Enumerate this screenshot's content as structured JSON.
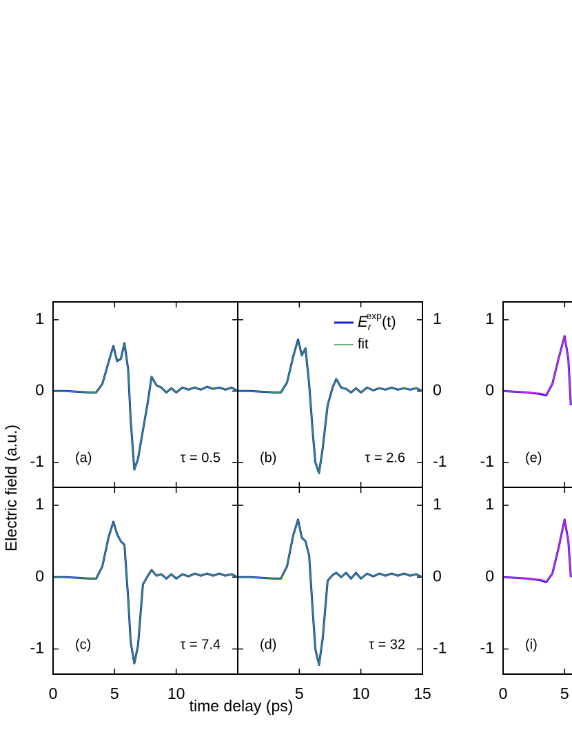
{
  "chart_data": [
    {
      "type": "line",
      "label": "(a)",
      "note": "τ = 0.5",
      "ylabel": "Electric field (a.u.)",
      "x": [
        0,
        1,
        2,
        3,
        3.5,
        4,
        4.5,
        4.9,
        5.2,
        5.5,
        5.8,
        6.1,
        6.3,
        6.6,
        6.9,
        7.3,
        7.7,
        8.0,
        8.4,
        8.8,
        9.2,
        9.6,
        10,
        10.5,
        11,
        11.5,
        12,
        12.5,
        13,
        13.5,
        14,
        14.5,
        15
      ],
      "series": [
        {
          "name": "E_r^exp(t)",
          "color": "#1a1ae6",
          "values": [
            0,
            0,
            -0.01,
            -0.02,
            -0.02,
            0.1,
            0.4,
            0.63,
            0.42,
            0.45,
            0.67,
            0.3,
            -0.4,
            -1.1,
            -0.95,
            -0.55,
            -0.15,
            0.2,
            0.08,
            0.05,
            -0.02,
            0.04,
            -0.02,
            0.05,
            0.02,
            0.05,
            0.02,
            0.06,
            0.03,
            0.05,
            0.02,
            0.05,
            0.0
          ]
        },
        {
          "name": "fit",
          "color": "#2e9a4a",
          "values": [
            0,
            0,
            -0.01,
            -0.02,
            -0.02,
            0.1,
            0.4,
            0.62,
            0.42,
            0.45,
            0.66,
            0.3,
            -0.4,
            -1.1,
            -0.95,
            -0.55,
            -0.15,
            0.2,
            0.08,
            0.05,
            -0.02,
            0.04,
            -0.02,
            0.05,
            0.02,
            0.05,
            0.02,
            0.06,
            0.03,
            0.05,
            0.02,
            0.05,
            0.0
          ]
        }
      ],
      "xlim": [
        0,
        15
      ],
      "xticks": [
        5,
        10
      ],
      "ylim": [
        -1.35,
        1.25
      ],
      "yticks": [
        -1,
        0,
        1
      ],
      "yaxis_side": "left"
    },
    {
      "type": "line",
      "label": "(b)",
      "note": "τ = 2.6",
      "legend": "upper right",
      "x": [
        0,
        1,
        2,
        3,
        3.5,
        4,
        4.5,
        4.9,
        5.2,
        5.5,
        5.8,
        6.1,
        6.3,
        6.6,
        6.9,
        7.3,
        7.7,
        8.0,
        8.4,
        8.8,
        9.2,
        9.6,
        10,
        10.5,
        11,
        11.5,
        12,
        12.5,
        13,
        13.5,
        14,
        14.5,
        15
      ],
      "series": [
        {
          "name": "E_r^exp(t)",
          "color": "#1a1ae6",
          "values": [
            0,
            0,
            -0.01,
            -0.02,
            -0.02,
            0.12,
            0.48,
            0.72,
            0.5,
            0.6,
            0.1,
            -0.6,
            -1.0,
            -1.15,
            -0.8,
            -0.2,
            0.05,
            0.17,
            0.05,
            0.03,
            -0.02,
            0.04,
            -0.02,
            0.05,
            0.01,
            0.04,
            0.02,
            0.05,
            0.02,
            0.04,
            0.02,
            0.04,
            0.0
          ]
        },
        {
          "name": "fit",
          "color": "#2e9a4a",
          "values": [
            0,
            0,
            -0.01,
            -0.02,
            -0.02,
            0.12,
            0.47,
            0.7,
            0.5,
            0.6,
            0.1,
            -0.6,
            -1.0,
            -1.15,
            -0.8,
            -0.2,
            0.05,
            0.17,
            0.05,
            0.03,
            -0.02,
            0.04,
            -0.02,
            0.05,
            0.01,
            0.04,
            0.02,
            0.05,
            0.02,
            0.04,
            0.02,
            0.04,
            0.0
          ]
        }
      ],
      "xlim": [
        0,
        15
      ],
      "xticks": [
        5,
        10
      ],
      "ylim": [
        -1.35,
        1.25
      ],
      "yticks": [
        -1,
        0,
        1
      ],
      "yaxis_side": "right"
    },
    {
      "type": "line",
      "label": "(c)",
      "note": "τ = 7.4",
      "xlabel": "time delay (ps)",
      "x": [
        0,
        1,
        2,
        3,
        3.5,
        4,
        4.5,
        4.9,
        5.2,
        5.5,
        5.8,
        6.1,
        6.3,
        6.6,
        6.9,
        7.3,
        7.7,
        8.0,
        8.4,
        8.8,
        9.2,
        9.6,
        10,
        10.5,
        11,
        11.5,
        12,
        12.5,
        13,
        13.5,
        14,
        14.5,
        15
      ],
      "series": [
        {
          "name": "E_r^exp(t)",
          "color": "#1a1ae6",
          "values": [
            0,
            0,
            -0.01,
            -0.02,
            -0.02,
            0.15,
            0.55,
            0.77,
            0.6,
            0.5,
            0.45,
            -0.3,
            -0.9,
            -1.2,
            -0.95,
            -0.1,
            0.02,
            0.1,
            0.02,
            0.04,
            -0.02,
            0.04,
            -0.02,
            0.04,
            0.01,
            0.05,
            0.02,
            0.05,
            0.02,
            0.05,
            0.02,
            0.04,
            0.0
          ]
        },
        {
          "name": "fit",
          "color": "#2e9a4a",
          "values": [
            0,
            0,
            -0.01,
            -0.02,
            -0.02,
            0.15,
            0.55,
            0.76,
            0.6,
            0.5,
            0.45,
            -0.3,
            -0.9,
            -1.2,
            -0.95,
            -0.1,
            0.02,
            0.1,
            0.02,
            0.04,
            -0.02,
            0.04,
            -0.02,
            0.04,
            0.01,
            0.05,
            0.02,
            0.05,
            0.02,
            0.05,
            0.02,
            0.04,
            0.0
          ]
        }
      ],
      "xlim": [
        0,
        15
      ],
      "xticks": [
        0,
        5,
        10
      ],
      "ylim": [
        -1.35,
        1.25
      ],
      "yticks": [
        -1,
        0,
        1
      ],
      "yaxis_side": "left"
    },
    {
      "type": "line",
      "label": "(d)",
      "note": "τ = 32",
      "x": [
        0,
        1,
        2,
        3,
        3.5,
        4,
        4.5,
        4.9,
        5.2,
        5.5,
        5.8,
        6.1,
        6.3,
        6.6,
        6.9,
        7.3,
        7.7,
        8.0,
        8.4,
        8.8,
        9.2,
        9.6,
        10,
        10.5,
        11,
        11.5,
        12,
        12.5,
        13,
        13.5,
        14,
        14.5,
        15
      ],
      "series": [
        {
          "name": "E_r^exp(t)",
          "color": "#1a1ae6",
          "values": [
            0,
            0,
            -0.01,
            -0.02,
            -0.02,
            0.15,
            0.58,
            0.8,
            0.55,
            0.5,
            0.3,
            -0.5,
            -1.0,
            -1.22,
            -0.85,
            -0.05,
            0.03,
            0.06,
            0.0,
            0.06,
            -0.02,
            0.06,
            -0.02,
            0.05,
            0.01,
            0.05,
            0.02,
            0.05,
            0.02,
            0.05,
            0.02,
            0.04,
            0.0
          ]
        },
        {
          "name": "fit",
          "color": "#2e9a4a",
          "values": [
            0,
            0,
            -0.01,
            -0.02,
            -0.02,
            0.15,
            0.58,
            0.79,
            0.55,
            0.5,
            0.3,
            -0.5,
            -1.0,
            -1.22,
            -0.85,
            -0.05,
            0.03,
            0.06,
            0.0,
            0.06,
            -0.02,
            0.06,
            -0.02,
            0.05,
            0.01,
            0.05,
            0.02,
            0.05,
            0.02,
            0.05,
            0.02,
            0.04,
            0.0
          ]
        }
      ],
      "xlim": [
        0,
        15
      ],
      "xticks": [
        5,
        10,
        15
      ],
      "ylim": [
        -1.35,
        1.25
      ],
      "yticks": [
        -1,
        0,
        1
      ],
      "yaxis_side": "right"
    },
    {
      "type": "line",
      "label": "(e)",
      "x": [
        0,
        1,
        2,
        3,
        3.5,
        4,
        4.5,
        5,
        5.3,
        5.5
      ],
      "series": [
        {
          "color": "#1a1ae6",
          "values": [
            0,
            -0.01,
            -0.02,
            -0.04,
            -0.06,
            0.1,
            0.45,
            0.77,
            0.45,
            -0.2
          ]
        },
        {
          "color": "#e020e0",
          "values": [
            0,
            -0.01,
            -0.02,
            -0.03,
            -0.05,
            0.1,
            0.45,
            0.76,
            0.45,
            -0.2
          ]
        }
      ],
      "xlim": [
        0,
        15
      ],
      "xticks": [
        5
      ],
      "ylim": [
        -1.35,
        1.25
      ],
      "yticks": [
        -1,
        0,
        1
      ],
      "yaxis_side": "left"
    },
    {
      "type": "line",
      "label": "(i)",
      "x": [
        0,
        1,
        2,
        3,
        3.5,
        4,
        4.5,
        5,
        5.3,
        5.5
      ],
      "series": [
        {
          "color": "#1a1ae6",
          "values": [
            0,
            -0.01,
            -0.02,
            -0.04,
            -0.07,
            0.05,
            0.4,
            0.8,
            0.5,
            0.0
          ]
        },
        {
          "color": "#e020e0",
          "values": [
            0,
            -0.01,
            -0.02,
            -0.03,
            -0.06,
            0.05,
            0.4,
            0.79,
            0.5,
            0.0
          ]
        }
      ],
      "xlim": [
        0,
        15
      ],
      "xticks": [
        0,
        5
      ],
      "ylim": [
        -1.35,
        1.25
      ],
      "yticks": [
        -1,
        0,
        1
      ],
      "yaxis_side": "left"
    }
  ]
}
